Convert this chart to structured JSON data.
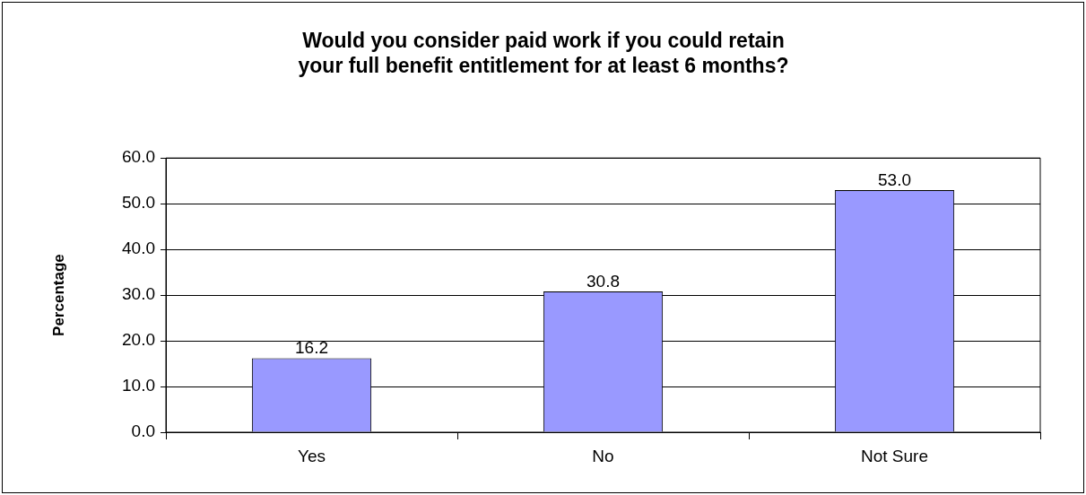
{
  "chart_data": {
    "type": "bar",
    "title": "Would you consider paid work if you could retain\nyour full benefit entitlement for at least 6 months?",
    "ylabel": "Percentage",
    "categories": [
      "Yes",
      "No",
      "Not Sure"
    ],
    "values": [
      16.2,
      30.8,
      53.0
    ],
    "value_labels": [
      "16.2",
      "30.8",
      "53.0"
    ],
    "color": "#9999ff",
    "ylim": [
      0,
      60
    ],
    "yticks": [
      {
        "value": 0,
        "label": "0.0"
      },
      {
        "value": 10,
        "label": "10.0"
      },
      {
        "value": 20,
        "label": "20.0"
      },
      {
        "value": 30,
        "label": "30.0"
      },
      {
        "value": 40,
        "label": "40.0"
      },
      {
        "value": 50,
        "label": "50.0"
      },
      {
        "value": 60,
        "label": "60.0"
      }
    ],
    "grid": "y",
    "legend": false
  }
}
